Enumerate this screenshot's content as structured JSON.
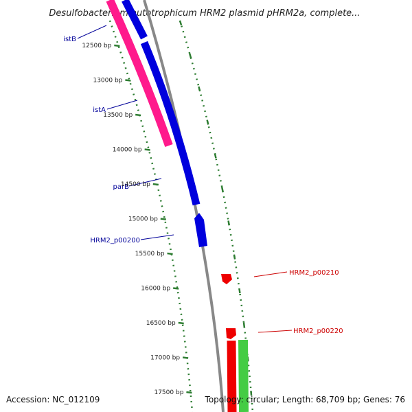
{
  "title": "Desulfobacterium autotrophicum HRM2 plasmid pHRM2a, complete...",
  "accession": "Accession: NC_012109",
  "summary": "Topology: circular; Length: 68,709 bp; Genes: 76",
  "colors": {
    "backbone": "#888888",
    "tick": "#2e7d32",
    "fwd_gene": "#0000dd",
    "rev_gene": "#ff1a8c",
    "red_gene": "#ee0000",
    "green_gene": "#44cc44",
    "blue_label": "#000099",
    "red_label": "#cc0000"
  },
  "ticks": [
    {
      "bp": 12500,
      "label": "12500 bp"
    },
    {
      "bp": 13000,
      "label": "13000 bp"
    },
    {
      "bp": 13500,
      "label": "13500 bp"
    },
    {
      "bp": 14000,
      "label": "14000 bp"
    },
    {
      "bp": 14500,
      "label": "14500 bp"
    },
    {
      "bp": 15000,
      "label": "15000 bp"
    },
    {
      "bp": 15500,
      "label": "15500 bp"
    },
    {
      "bp": 16000,
      "label": "16000 bp"
    },
    {
      "bp": 16500,
      "label": "16500 bp"
    },
    {
      "bp": 17000,
      "label": "17000 bp"
    },
    {
      "bp": 17500,
      "label": "17500 bp"
    }
  ],
  "labels": {
    "istB": "istB",
    "istA": "istA",
    "parB": "parB",
    "p00200": "HRM2_p00200",
    "p00210": "HRM2_p00210",
    "p00220": "HRM2_p00220"
  }
}
